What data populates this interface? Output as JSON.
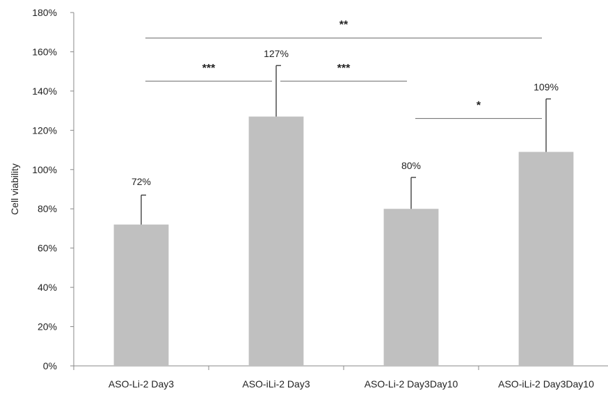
{
  "chart_data": {
    "type": "bar",
    "title": "",
    "xlabel": "",
    "ylabel": "Cell viability",
    "ylim": [
      0,
      180
    ],
    "yticks": [
      0,
      20,
      40,
      60,
      80,
      100,
      120,
      140,
      160,
      180
    ],
    "ytick_labels": [
      "0%",
      "20%",
      "40%",
      "60%",
      "80%",
      "100%",
      "120%",
      "140%",
      "160%",
      "180%"
    ],
    "categories": [
      "ASO-Li-2 Day3",
      "ASO-iLi-2 Day3",
      "ASO-Li-2 Day3Day10",
      "ASO-iLi-2 Day3Day10"
    ],
    "values": [
      72,
      127,
      80,
      109
    ],
    "value_labels": [
      "72%",
      "127%",
      "80%",
      "109%"
    ],
    "error_upper": [
      15,
      26,
      16,
      27
    ],
    "bar_color": "#c0c0c0",
    "grid": false,
    "legend": "none",
    "significance": [
      {
        "from": 0,
        "to": 3,
        "label": "**",
        "y": 167
      },
      {
        "from": 0,
        "to": 1,
        "label": "***",
        "y": 145
      },
      {
        "from": 1,
        "to": 2,
        "label": "***",
        "y": 145
      },
      {
        "from": 2,
        "to": 3,
        "label": "*",
        "y": 126
      }
    ]
  }
}
